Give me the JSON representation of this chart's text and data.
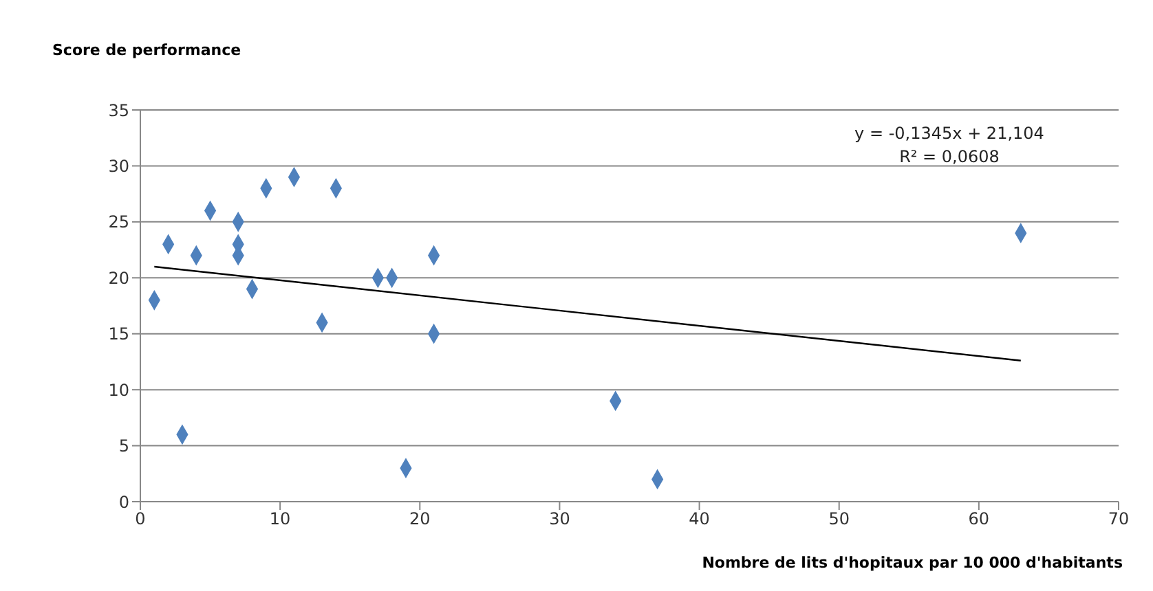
{
  "chart_data": {
    "type": "scatter",
    "xlabel": "Nombre de lits d'hopitaux par 10 000 d'habitants",
    "ylabel": "Score de performance",
    "xlim": [
      0,
      70
    ],
    "xticks": [
      0,
      10,
      20,
      30,
      40,
      50,
      60,
      70
    ],
    "ylim": [
      0,
      35
    ],
    "yticks": [
      0,
      5,
      10,
      15,
      20,
      25,
      30,
      35
    ],
    "grid": "y",
    "series": [
      {
        "marker": "diamond",
        "color": "#4f81bd",
        "x": [
          1,
          2,
          3,
          4,
          5,
          7,
          7,
          7,
          8,
          9,
          11,
          13,
          14,
          17,
          18,
          19,
          21,
          21,
          34,
          37,
          63
        ],
        "values": [
          18,
          23,
          6,
          22,
          26,
          25,
          23,
          22,
          19,
          28,
          29,
          16,
          28,
          20,
          20,
          3,
          22,
          15,
          9,
          2,
          24
        ]
      },
      {
        "type": "line",
        "color": "#000000",
        "line_style": "solid",
        "x": [
          1,
          63
        ],
        "values": [
          21,
          12.6
        ]
      }
    ],
    "annotations": [
      "y = -0,1345x + 21,104",
      "R² = 0,0608"
    ]
  }
}
